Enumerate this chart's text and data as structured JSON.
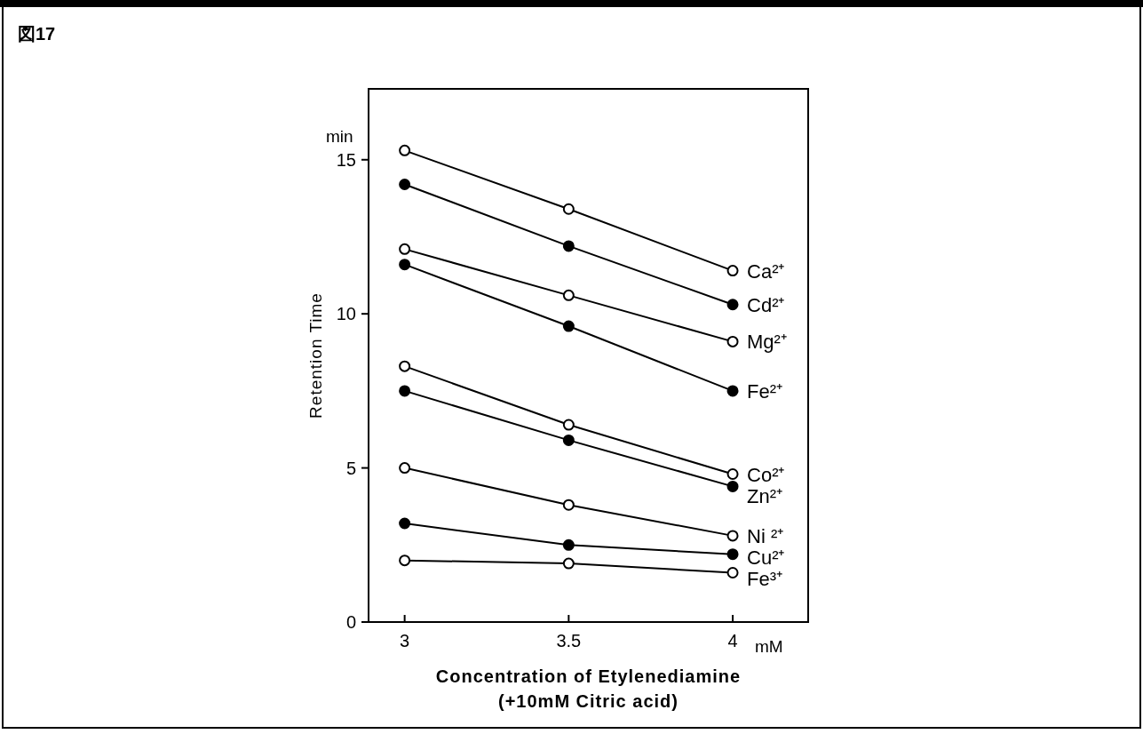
{
  "chart_data": {
    "type": "line",
    "title": "図17",
    "xlabel": "Concentration of Etylenediamine\n(+10mM Citric acid)",
    "ylabel": "Retention Time",
    "annotations": [
      "min",
      "mM"
    ],
    "x": [
      3,
      3.5,
      4
    ],
    "xlim": [
      2.89,
      4.23
    ],
    "xticks": [
      3,
      3.5,
      4
    ],
    "ylim": [
      0,
      17.3
    ],
    "yticks": [
      0,
      5,
      10,
      15
    ],
    "marker": "circle",
    "line_style": "solid",
    "grid": false,
    "series": [
      {
        "name": "Ca²⁺",
        "color": "#ffffff",
        "values": [
          15.3,
          13.4,
          11.4
        ]
      },
      {
        "name": "Cd²⁺",
        "color": "#000000",
        "values": [
          14.2,
          12.2,
          10.3
        ]
      },
      {
        "name": "Mg²⁺",
        "color": "#ffffff",
        "values": [
          12.1,
          10.6,
          9.1
        ]
      },
      {
        "name": "Fe²⁺",
        "color": "#000000",
        "values": [
          11.6,
          9.6,
          7.5
        ]
      },
      {
        "name": "Co²⁺",
        "color": "#ffffff",
        "values": [
          8.3,
          6.4,
          4.8
        ]
      },
      {
        "name": "Zn²⁺",
        "color": "#000000",
        "values": [
          7.5,
          5.9,
          4.4
        ]
      },
      {
        "name": "Ni ²⁺",
        "color": "#ffffff",
        "values": [
          5.0,
          3.8,
          2.8
        ]
      },
      {
        "name": "Cu²⁺",
        "color": "#000000",
        "values": [
          3.2,
          2.5,
          2.2
        ]
      },
      {
        "name": "Fe³⁺",
        "color": "#ffffff",
        "values": [
          2.0,
          1.9,
          1.6
        ]
      }
    ]
  }
}
